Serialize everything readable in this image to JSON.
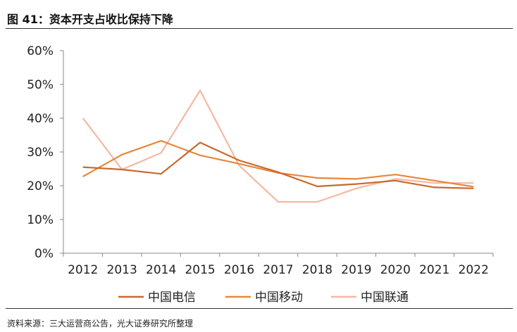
{
  "figure": {
    "title": "图 41：资本开支占收比保持下降",
    "source": "资料来源：三大运营商公告，光大证券研究所整理"
  },
  "chart_data": {
    "type": "line",
    "title": "图 41：资本开支占收比保持下降",
    "xlabel": "",
    "ylabel": "",
    "categories": [
      "2012",
      "2013",
      "2014",
      "2015",
      "2016",
      "2017",
      "2018",
      "2019",
      "2020",
      "2021",
      "2022"
    ],
    "ylim": [
      0,
      60
    ],
    "yticks": [
      "0%",
      "10%",
      "20%",
      "30%",
      "40%",
      "50%",
      "60%"
    ],
    "grid": false,
    "legend_position": "bottom",
    "series": [
      {
        "name": "中国电信",
        "color": "#C8692E",
        "values": [
          25.5,
          24.8,
          23.5,
          32.8,
          27.5,
          24.0,
          19.8,
          20.5,
          21.5,
          19.5,
          19.2
        ]
      },
      {
        "name": "中国移动",
        "color": "#E8873A",
        "values": [
          22.7,
          29.2,
          33.3,
          29.0,
          26.5,
          23.8,
          22.3,
          22.0,
          23.3,
          21.5,
          19.7
        ]
      },
      {
        "name": "中国联通",
        "color": "#F4B8A2",
        "values": [
          40.0,
          24.8,
          29.7,
          48.2,
          26.0,
          15.2,
          15.2,
          19.2,
          22.0,
          20.8,
          20.8
        ]
      }
    ]
  }
}
